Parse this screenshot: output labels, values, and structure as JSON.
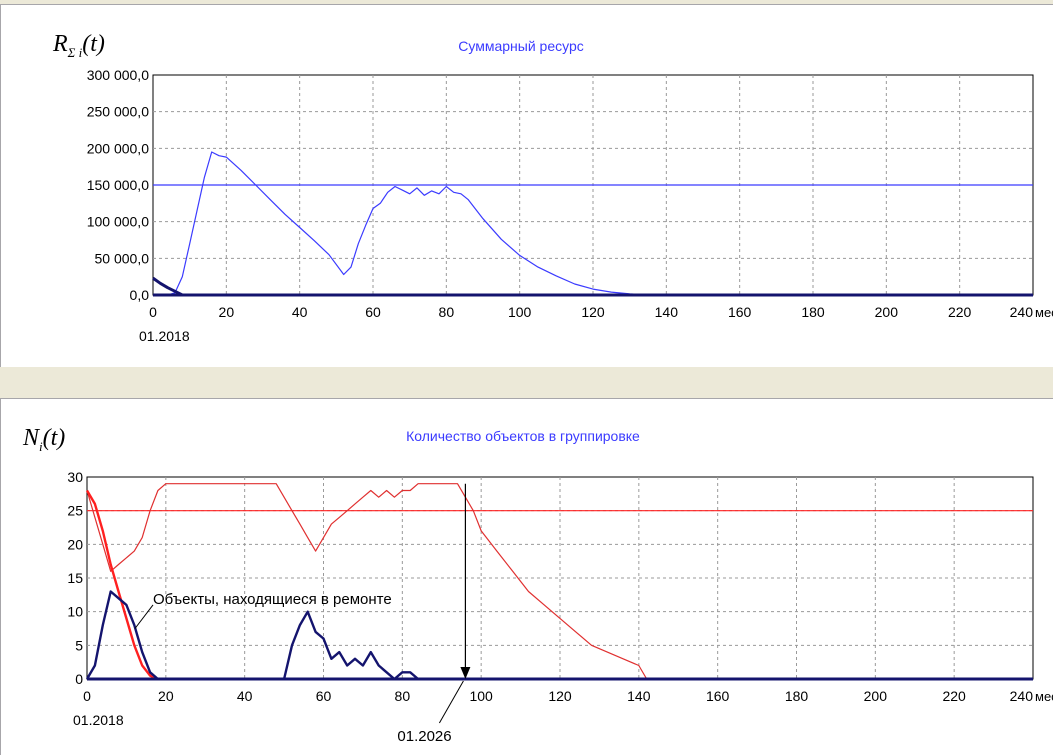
{
  "colors": {
    "blue": "#3b3bff",
    "navy": "#14146e",
    "red": "#e03030",
    "bright_red": "#ff2020",
    "grid": "#9a9a9a"
  },
  "chart_data": [
    {
      "type": "line",
      "title": "Суммарный ресурс",
      "ylabel_symbol": "R",
      "ylabel_sub": "Σ i",
      "ylabel_arg": "(t)",
      "x_unit": "мес",
      "start_date": "01.2018",
      "xlim": [
        0,
        240
      ],
      "ylim": [
        0,
        300000
      ],
      "x_ticks": [
        "0",
        "20",
        "40",
        "60",
        "80",
        "100",
        "120",
        "140",
        "160",
        "180",
        "200",
        "220",
        "240"
      ],
      "y_ticks": [
        "0,0",
        "50 000,0",
        "100 000,0",
        "150 000,0",
        "200 000,0",
        "250 000,0",
        "300 000,0"
      ],
      "reference_level": 150000,
      "series": [
        {
          "x": [
            0,
            2,
            4,
            6,
            8,
            10,
            12,
            14,
            16,
            18,
            20,
            24,
            28,
            32,
            36,
            40,
            44,
            48,
            52,
            54,
            56,
            58,
            60,
            62,
            64,
            66,
            68,
            70,
            72,
            74,
            76,
            78,
            80,
            82,
            84,
            86,
            90,
            95,
            100,
            105,
            110,
            115,
            120,
            125,
            130,
            135,
            240
          ],
          "y": [
            0,
            0,
            0,
            3000,
            25000,
            70000,
            115000,
            160000,
            195000,
            190000,
            188000,
            170000,
            150000,
            130000,
            110000,
            92000,
            74000,
            55000,
            28000,
            38000,
            70000,
            95000,
            118000,
            125000,
            140000,
            148000,
            143000,
            138000,
            146000,
            136000,
            142000,
            138000,
            148000,
            140000,
            138000,
            130000,
            104000,
            76000,
            54000,
            38000,
            26000,
            15000,
            8000,
            4000,
            1500,
            0,
            0
          ]
        },
        {
          "x": [
            0,
            2,
            4,
            6,
            8,
            10,
            240
          ],
          "y": [
            23000,
            16000,
            10000,
            5000,
            0,
            0,
            0
          ]
        }
      ]
    },
    {
      "type": "line",
      "title": "Количество объектов в группировке",
      "ylabel_symbol": "N",
      "ylabel_sub": "i",
      "ylabel_arg": "(t)",
      "x_unit": "мес",
      "start_date": "01.2018",
      "marker_date": "01.2026",
      "marker_x": 96,
      "annotation": "Объекты, находящиеся в ремонте",
      "xlim": [
        0,
        240
      ],
      "ylim": [
        0,
        30
      ],
      "x_ticks": [
        "0",
        "20",
        "40",
        "60",
        "80",
        "100",
        "120",
        "140",
        "160",
        "180",
        "200",
        "220",
        "240"
      ],
      "y_ticks": [
        "0",
        "5",
        "10",
        "15",
        "20",
        "25",
        "30"
      ],
      "reference_level": 25,
      "series": [
        {
          "x": [
            0,
            2,
            4,
            6,
            8,
            10,
            12,
            14,
            16,
            18,
            20,
            30,
            40,
            48,
            50,
            52,
            54,
            56,
            58,
            60,
            62,
            64,
            66,
            68,
            70,
            72,
            74,
            76,
            78,
            80,
            82,
            84,
            86,
            88,
            90,
            94,
            96,
            98,
            100,
            104,
            108,
            112,
            116,
            120,
            124,
            128,
            132,
            136,
            140,
            142,
            240
          ],
          "y": [
            28,
            24,
            20,
            16,
            17,
            18,
            19,
            21,
            25,
            28,
            29,
            29,
            29,
            29,
            27,
            25,
            23,
            21,
            19,
            21,
            23,
            24,
            25,
            26,
            27,
            28,
            27,
            28,
            27,
            28,
            28,
            29,
            29,
            29,
            29,
            29,
            27,
            25,
            22,
            19,
            16,
            13,
            11,
            9,
            7,
            5,
            4,
            3,
            2,
            0,
            0
          ],
          "color": "red"
        },
        {
          "x": [
            0,
            2,
            4,
            6,
            8,
            10,
            12,
            14,
            16,
            18,
            240
          ],
          "y": [
            28,
            26,
            22,
            17,
            13,
            9,
            5,
            2,
            0.5,
            0,
            0
          ],
          "color": "bright_red"
        },
        {
          "x": [
            0,
            2,
            4,
            6,
            8,
            10,
            12,
            14,
            16,
            18,
            20,
            50,
            52,
            54,
            56,
            58,
            60,
            62,
            64,
            66,
            68,
            70,
            72,
            74,
            76,
            78,
            80,
            82,
            84,
            240
          ],
          "y": [
            0,
            2,
            8,
            13,
            12,
            11,
            8,
            4,
            1,
            0,
            0,
            0,
            5,
            8,
            10,
            7,
            6,
            3,
            4,
            2,
            3,
            2,
            4,
            2,
            1,
            0,
            1,
            1,
            0,
            0
          ],
          "color": "navy"
        },
        {
          "x": [
            0,
            50,
            52,
            54,
            56,
            58,
            60,
            62,
            64,
            240
          ],
          "y": [
            0,
            0,
            0,
            0,
            0,
            0,
            0,
            0,
            0,
            0
          ],
          "color": "red"
        }
      ]
    }
  ]
}
